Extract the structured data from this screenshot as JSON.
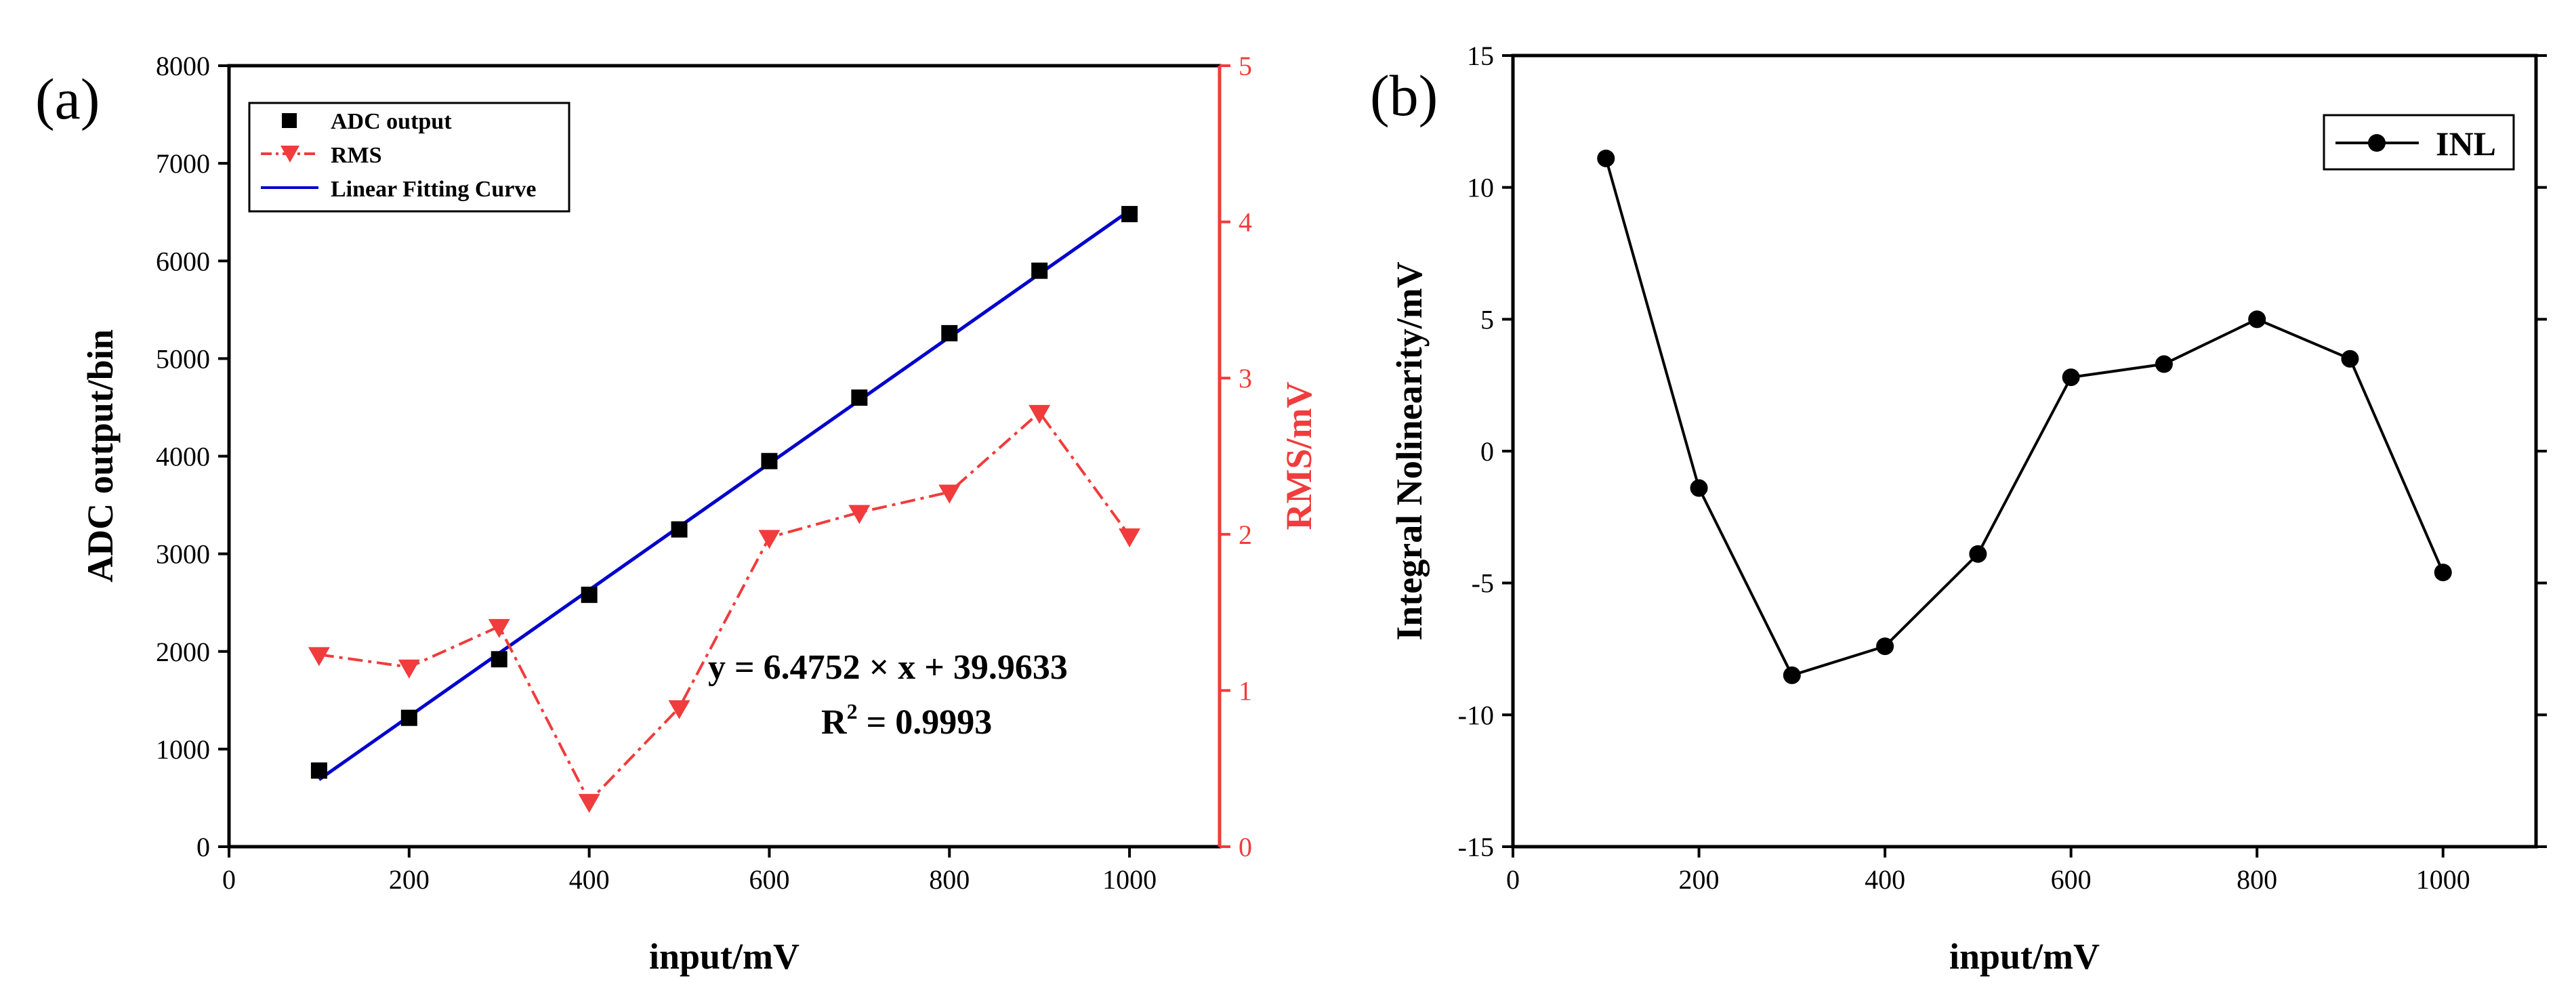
{
  "chart_data": [
    {
      "panel_label": "(a)",
      "type": "scatter+line",
      "xlabel": "input/mV",
      "ylabel": "ADC output/bin",
      "y2label": "RMS/mV",
      "xlim": [
        0,
        1100
      ],
      "ylim": [
        0,
        8000
      ],
      "y2lim": [
        0,
        5
      ],
      "xticks": [
        0,
        200,
        400,
        600,
        800,
        1000
      ],
      "yticks": [
        0,
        1000,
        2000,
        3000,
        4000,
        5000,
        6000,
        7000,
        8000
      ],
      "y2ticks": [
        0,
        1,
        2,
        3,
        4,
        5
      ],
      "x": [
        100,
        200,
        300,
        400,
        500,
        600,
        700,
        800,
        900,
        1000
      ],
      "series": [
        {
          "name": "ADC output",
          "axis": "left",
          "style": "black-square-marker",
          "values": [
            780,
            1320,
            1920,
            2580,
            3250,
            3950,
            4600,
            5260,
            5900,
            6480
          ]
        },
        {
          "name": "RMS",
          "axis": "right",
          "style": "red-dashdot-down-triangle",
          "values": [
            1.23,
            1.15,
            1.41,
            0.29,
            0.89,
            1.98,
            2.14,
            2.27,
            2.78,
            1.99
          ]
        },
        {
          "name": "Linear Fitting Curve",
          "axis": "left",
          "style": "blue-line",
          "fit": {
            "slope": 6.4752,
            "intercept": 39.9633,
            "x_range": [
              100,
              1000
            ]
          }
        }
      ],
      "legend": [
        "ADC output",
        "RMS",
        "Linear Fitting Curve"
      ],
      "legend_position": "top-left",
      "annotations": {
        "equation": "y = 6.4752 × x + 39.9633",
        "r2_prefix": "R",
        "r2_exp": "2",
        "r2_value": " = 0.9993"
      },
      "colors": {
        "adc": "#000000",
        "rms": "#f03c3c",
        "fit": "#0000cc"
      }
    },
    {
      "panel_label": "(b)",
      "type": "line",
      "xlabel": "input/mV",
      "ylabel": "Integral Nolinearity/mV",
      "xlim": [
        0,
        1100
      ],
      "ylim": [
        -15,
        15
      ],
      "xticks": [
        0,
        200,
        400,
        600,
        800,
        1000
      ],
      "yticks": [
        -15,
        -10,
        -5,
        0,
        5,
        10,
        15
      ],
      "x": [
        100,
        200,
        300,
        400,
        500,
        600,
        700,
        800,
        900,
        1000
      ],
      "series": [
        {
          "name": "INL",
          "style": "black-line-circle-marker",
          "values": [
            11.1,
            -1.4,
            -8.5,
            -7.4,
            -3.9,
            2.8,
            3.3,
            5.0,
            3.5,
            -4.6
          ]
        }
      ],
      "legend": [
        "INL"
      ],
      "legend_position": "top-right",
      "colors": {
        "inl": "#000000"
      }
    }
  ]
}
